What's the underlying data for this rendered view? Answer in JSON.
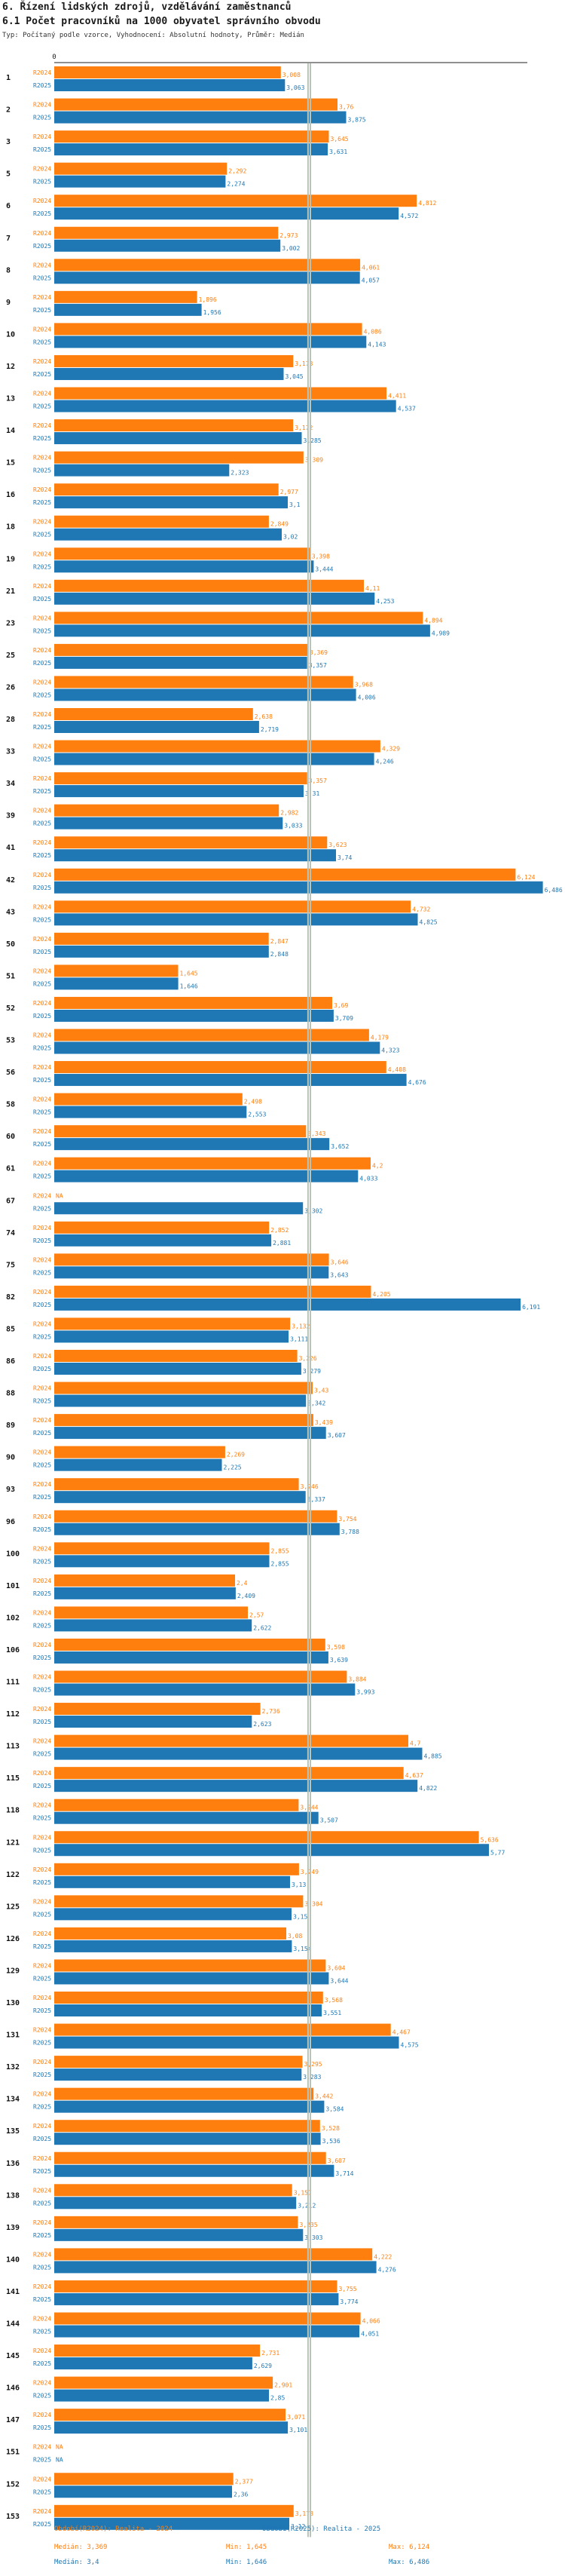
{
  "header": {
    "title": "6. Řízení lidských zdrojů, vzdělávání zaměstnanců",
    "subtitle": "6.1 Počet pracovníků na 1000 obyvatel správního obvodu",
    "meta": "Typ: Počítaný podle vzorce, Vyhodnocení: Absolutní hodnoty, Průměr: Medián"
  },
  "colors": {
    "r2024": "#ff7f0e",
    "r2025": "#1f77b4",
    "median": "#b8c4b8",
    "axis": "#222222"
  },
  "chart_data": {
    "type": "bar",
    "orientation": "horizontal",
    "axis_zero_label": "0",
    "xlim": [
      0,
      6.6
    ],
    "series_labels": [
      "R2024",
      "R2025"
    ],
    "missing_label": "NA",
    "categories": [
      "1",
      "2",
      "3",
      "5",
      "6",
      "7",
      "8",
      "9",
      "10",
      "12",
      "13",
      "14",
      "15",
      "16",
      "18",
      "19",
      "21",
      "23",
      "25",
      "26",
      "28",
      "33",
      "34",
      "39",
      "41",
      "42",
      "43",
      "50",
      "51",
      "52",
      "53",
      "56",
      "58",
      "60",
      "61",
      "67",
      "74",
      "75",
      "82",
      "85",
      "86",
      "88",
      "89",
      "90",
      "93",
      "96",
      "100",
      "101",
      "102",
      "106",
      "111",
      "112",
      "113",
      "115",
      "118",
      "121",
      "122",
      "125",
      "126",
      "129",
      "130",
      "131",
      "132",
      "134",
      "135",
      "136",
      "138",
      "139",
      "140",
      "141",
      "144",
      "145",
      "146",
      "147",
      "151",
      "152",
      "153"
    ],
    "series": [
      {
        "name": "R2024",
        "values": [
          3.008,
          3.76,
          3.645,
          2.292,
          4.812,
          2.973,
          4.061,
          1.896,
          4.086,
          3.173,
          4.411,
          3.172,
          3.309,
          2.977,
          2.849,
          3.398,
          4.11,
          4.894,
          3.369,
          3.968,
          2.638,
          4.329,
          3.357,
          2.982,
          3.623,
          6.124,
          4.732,
          2.847,
          1.645,
          3.69,
          4.179,
          4.408,
          2.498,
          3.343,
          4.2,
          null,
          2.852,
          3.646,
          4.205,
          3.132,
          3.226,
          3.43,
          3.439,
          2.269,
          3.246,
          3.754,
          2.855,
          2.4,
          2.57,
          3.598,
          3.884,
          2.736,
          4.7,
          4.637,
          3.244,
          5.636,
          3.249,
          3.304,
          3.08,
          3.604,
          3.568,
          4.467,
          3.295,
          3.442,
          3.528,
          3.607,
          3.157,
          3.235,
          4.222,
          3.755,
          4.066,
          2.731,
          2.901,
          3.071,
          null,
          2.377,
          3.178
        ],
        "labels": [
          "3,008",
          "3,76",
          "3,645",
          "2,292",
          "4,812",
          "2,973",
          "4,061",
          "1,896",
          "4,086",
          "3,173",
          "4,411",
          "3,172",
          "3,309",
          "2,977",
          "2,849",
          "3,398",
          "4,11",
          "4,894",
          "3,369",
          "3,968",
          "2,638",
          "4,329",
          "3,357",
          "2,982",
          "3,623",
          "6,124",
          "4,732",
          "2,847",
          "1,645",
          "3,69",
          "4,179",
          "4,408",
          "2,498",
          "3,343",
          "4,2",
          "NA",
          "2,852",
          "3,646",
          "4,205",
          "3,132",
          "3,226",
          "3,43",
          "3,439",
          "2,269",
          "3,246",
          "3,754",
          "2,855",
          "2,4",
          "2,57",
          "3,598",
          "3,884",
          "2,736",
          "4,7",
          "4,637",
          "3,244",
          "5,636",
          "3,249",
          "3,304",
          "3,08",
          "3,604",
          "3,568",
          "4,467",
          "3,295",
          "3,442",
          "3,528",
          "3,607",
          "3,157",
          "3,235",
          "4,222",
          "3,755",
          "4,066",
          "2,731",
          "2,901",
          "3,071",
          "NA",
          "2,377",
          "3,178"
        ]
      },
      {
        "name": "R2025",
        "values": [
          3.063,
          3.875,
          3.631,
          2.274,
          4.572,
          3.002,
          4.057,
          1.956,
          4.143,
          3.045,
          4.537,
          3.285,
          2.323,
          3.1,
          3.02,
          3.444,
          4.253,
          4.989,
          3.357,
          4.006,
          2.719,
          4.246,
          3.31,
          3.033,
          3.74,
          6.486,
          4.825,
          2.848,
          1.646,
          3.709,
          4.323,
          4.676,
          2.553,
          3.652,
          4.033,
          3.302,
          2.881,
          3.643,
          6.191,
          3.111,
          3.279,
          3.342,
          3.607,
          2.225,
          3.337,
          3.788,
          2.855,
          2.409,
          2.622,
          3.639,
          3.993,
          2.623,
          4.885,
          4.822,
          3.507,
          5.77,
          3.13,
          3.15,
          3.154,
          3.644,
          3.551,
          4.575,
          3.283,
          3.584,
          3.536,
          3.714,
          3.212,
          3.303,
          4.276,
          3.774,
          4.051,
          2.629,
          2.85,
          3.101,
          null,
          2.36,
          3.12
        ],
        "labels": [
          "3,063",
          "3,875",
          "3,631",
          "2,274",
          "4,572",
          "3,002",
          "4,057",
          "1,956",
          "4,143",
          "3,045",
          "4,537",
          "3,285",
          "2,323",
          "3,1",
          "3,02",
          "3,444",
          "4,253",
          "4,989",
          "3,357",
          "4,006",
          "2,719",
          "4,246",
          "3,31",
          "3,033",
          "3,74",
          "6,486",
          "4,825",
          "2,848",
          "1,646",
          "3,709",
          "4,323",
          "4,676",
          "2,553",
          "3,652",
          "4,033",
          "3,302",
          "2,881",
          "3,643",
          "6,191",
          "3,111",
          "3,279",
          "3,342",
          "3,607",
          "2,225",
          "3,337",
          "3,788",
          "2,855",
          "2,409",
          "2,622",
          "3,639",
          "3,993",
          "2,623",
          "4,885",
          "4,822",
          "3,507",
          "5,77",
          "3,13",
          "3,15",
          "3,154",
          "3,644",
          "3,551",
          "4,575",
          "3,283",
          "3,584",
          "3,536",
          "3,714",
          "3,212",
          "3,303",
          "4,276",
          "3,774",
          "4,051",
          "2,629",
          "2,85",
          "3,101",
          "NA",
          "2,36",
          "3,12"
        ]
      }
    ],
    "median_2024": 3.369,
    "median_2025": 3.4
  },
  "footer": {
    "r2024_legend": "Období(R2024): Realita - 2024",
    "r2025_legend": "Období(R2025): Realita - 2025",
    "r2024_median": "Medián: 3,369",
    "r2024_min": "Min: 1,645",
    "r2024_max": "Max: 6,124",
    "r2025_median": "Medián: 3,4",
    "r2025_min": "Min: 1,646",
    "r2025_max": "Max: 6,486"
  }
}
